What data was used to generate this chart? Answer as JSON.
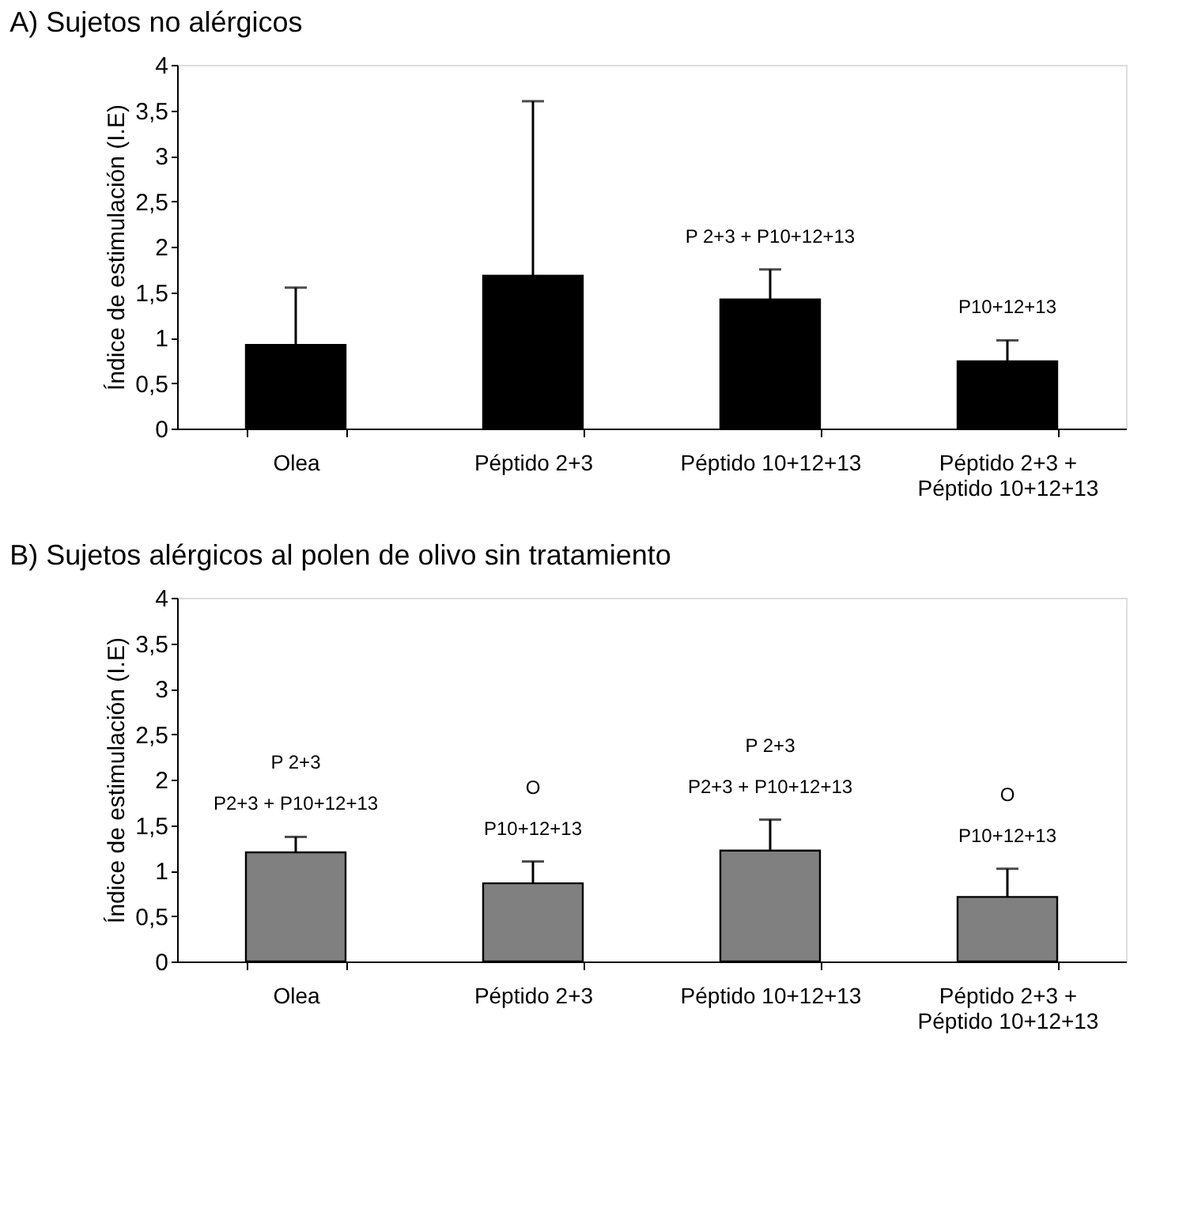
{
  "chart_data": [
    {
      "type": "bar",
      "title": "A) Sujetos no alérgicos",
      "ylabel": "Índice de estimulación (I.E)",
      "categories": [
        "Olea",
        "Péptido 2+3",
        "Péptido 10+12+13",
        "Péptido 2+3 +\nPéptido 10+12+13"
      ],
      "values": [
        0.92,
        1.68,
        1.42,
        0.74
      ],
      "errors": [
        [
          0.92,
          1.55
        ],
        [
          1.68,
          3.6
        ],
        [
          1.42,
          1.75
        ],
        [
          0.74,
          0.97
        ]
      ],
      "color": "#000000",
      "ylim": [
        0,
        4
      ],
      "yticks": [
        {
          "value": 0,
          "label": "0"
        },
        {
          "value": 0.5,
          "label": "0,5"
        },
        {
          "value": 1,
          "label": "1"
        },
        {
          "value": 1.5,
          "label": "1,5"
        },
        {
          "value": 2,
          "label": "2"
        },
        {
          "value": 2.5,
          "label": "2,5"
        },
        {
          "value": 3,
          "label": "3"
        },
        {
          "value": 3.5,
          "label": "3,5"
        },
        {
          "value": 4,
          "label": "4"
        }
      ],
      "grid": false,
      "annotations": [
        {
          "text": "P 2+3 + P10+12+13",
          "x": "Péptido 10+12+13",
          "y": 1.75
        },
        {
          "text": "P10+12+13",
          "x": "Péptido 2+3 +\nPéptido 10+12+13",
          "y": 0.97
        }
      ]
    },
    {
      "type": "bar",
      "title": "B) Sujetos alérgicos al polen de olivo sin tratamiento",
      "ylabel": "Índice de estimulación (I.E)",
      "categories": [
        "Olea",
        "Péptido 2+3",
        "Péptido 10+12+13",
        "Péptido 2+3 +\nPéptido 10+12+13"
      ],
      "values": [
        1.2,
        0.86,
        1.22,
        0.71
      ],
      "errors": [
        [
          1.2,
          1.37
        ],
        [
          0.86,
          1.1
        ],
        [
          1.22,
          1.56
        ],
        [
          0.71,
          1.02
        ]
      ],
      "color": "#808080",
      "ylim": [
        0,
        4
      ],
      "yticks": [
        {
          "value": 0,
          "label": "0"
        },
        {
          "value": 0.5,
          "label": "0,5"
        },
        {
          "value": 1,
          "label": "1"
        },
        {
          "value": 1.5,
          "label": "1,5"
        },
        {
          "value": 2,
          "label": "2"
        },
        {
          "value": 2.5,
          "label": "2,5"
        },
        {
          "value": 3,
          "label": "3"
        },
        {
          "value": 3.5,
          "label": "3,5"
        },
        {
          "value": 4,
          "label": "4"
        }
      ],
      "grid": false,
      "annotations": [
        {
          "text": "P 2+3\nP2+3 + P10+12+13",
          "x": "Olea",
          "y": 1.37
        },
        {
          "text": "O\nP10+12+13",
          "x": "Péptido 2+3",
          "y": 1.1
        },
        {
          "text": "P 2+3\nP2+3 + P10+12+13",
          "x": "Péptido 10+12+13",
          "y": 1.56
        },
        {
          "text": "O\nP10+12+13",
          "x": "Péptido 2+3 +\nPéptido 10+12+13",
          "y": 1.02
        }
      ]
    }
  ]
}
